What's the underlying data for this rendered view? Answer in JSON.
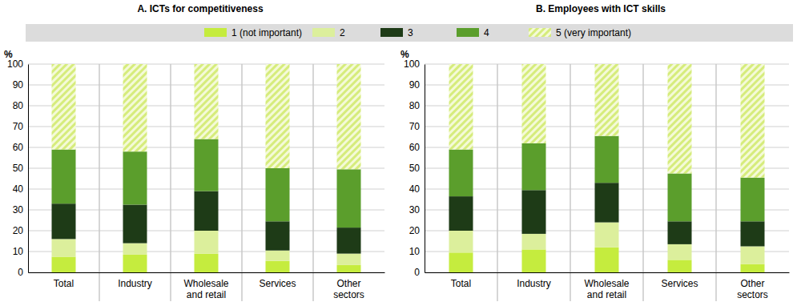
{
  "chart_data": [
    {
      "type": "bar",
      "stacked": true,
      "grid": true,
      "legend": "top",
      "title": "A. ICTs for competitiveness",
      "ylabel": "%",
      "categories": [
        "Total",
        "Industry",
        "Wholesale and retail",
        "Services",
        "Other sectors"
      ],
      "ylim": [
        0,
        100
      ],
      "yticks": [
        0,
        10,
        20,
        30,
        40,
        50,
        60,
        70,
        80,
        90,
        100
      ],
      "series": [
        {
          "name": "1 (not important)",
          "color": "#c5ec3e",
          "values": [
            7.5,
            8.5,
            9,
            5.5,
            3.5
          ]
        },
        {
          "name": "2",
          "color": "#dcef9c",
          "values": [
            8.5,
            5.5,
            11,
            5,
            5.5
          ]
        },
        {
          "name": "3",
          "color": "#1e3b17",
          "values": [
            17,
            18.5,
            19,
            14,
            12.5
          ]
        },
        {
          "name": "4",
          "color": "#5b9e2c",
          "values": [
            26,
            25.5,
            25,
            25.5,
            28
          ]
        },
        {
          "name": "5 (very important)",
          "color": "#d6ec7c",
          "values": [
            41,
            42,
            36,
            50,
            50.5
          ]
        }
      ]
    },
    {
      "type": "bar",
      "stacked": true,
      "grid": true,
      "title": "B. Employees with ICT skills",
      "ylabel": "%",
      "categories": [
        "Total",
        "Industry",
        "Wholesale and retail",
        "Services",
        "Other sectors"
      ],
      "ylim": [
        0,
        100
      ],
      "yticks": [
        0,
        10,
        20,
        30,
        40,
        50,
        60,
        70,
        80,
        90,
        100
      ],
      "series": [
        {
          "name": "1 (not important)",
          "color": "#c5ec3e",
          "values": [
            9.5,
            11,
            12,
            6,
            4
          ]
        },
        {
          "name": "2",
          "color": "#dcef9c",
          "values": [
            10.5,
            7.5,
            12,
            7.5,
            8.5
          ]
        },
        {
          "name": "3",
          "color": "#1e3b17",
          "values": [
            16.5,
            21,
            19,
            11,
            12
          ]
        },
        {
          "name": "4",
          "color": "#5b9e2c",
          "values": [
            22.5,
            22.5,
            22.5,
            23,
            21
          ]
        },
        {
          "name": "5 (very important)",
          "color": "#d6ec7c",
          "values": [
            41,
            38,
            34.5,
            52.5,
            54.5
          ]
        }
      ]
    }
  ]
}
